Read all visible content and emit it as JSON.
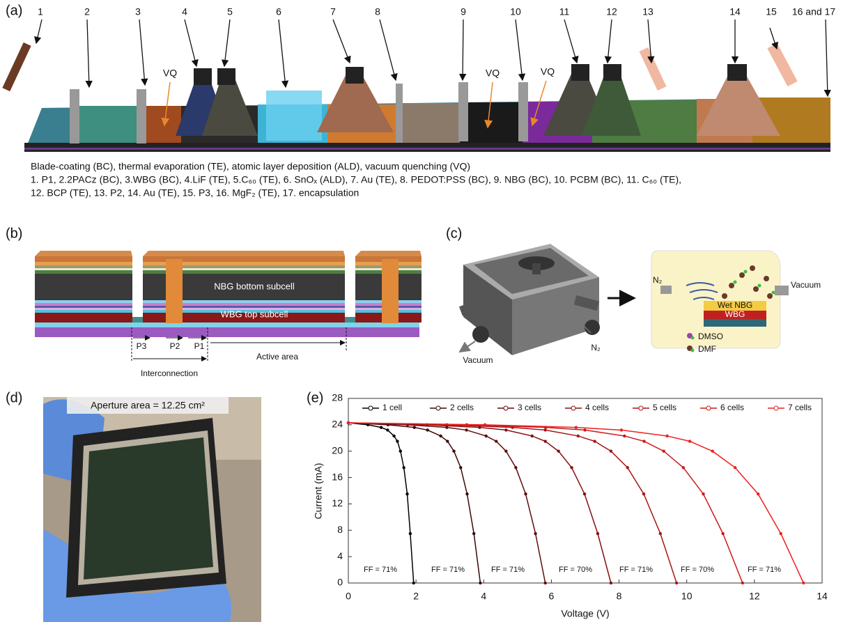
{
  "panel_a": {
    "label": "(a)",
    "steps": [
      "1",
      "2",
      "3",
      "4",
      "5",
      "6",
      "7",
      "8",
      "9",
      "10",
      "11",
      "12",
      "13",
      "14",
      "15",
      "16 and 17"
    ],
    "vq": [
      "VQ",
      "VQ",
      "VQ"
    ],
    "caption": [
      "Blade-coating (BC), thermal evaporation (TE), atomic layer deposition (ALD), vacuum quenching (VQ)",
      "1. P1, 2.2PACz (BC), 3.WBG (BC), 4.LiF (TE), 5.C₆₀ (TE), 6. SnOₓ (ALD), 7. Au (TE), 8. PEDOT:PSS (BC), 9. NBG (BC), 10. PCBM (BC), 11. C₆₀ (TE),",
      "12. BCP (TE), 13. P2, 14. Au (TE), 15. P3, 16. MgF₂ (TE), 17. encapsulation"
    ]
  },
  "panel_b": {
    "label": "(b)",
    "layers": [
      "NBG bottom subcell",
      "WBG top subcell"
    ],
    "scribes": [
      "P3",
      "P2",
      "P1"
    ],
    "regions": [
      "Active area",
      "Interconnection"
    ]
  },
  "panel_c": {
    "label": "(c)",
    "device": [
      "Vacuum",
      "N₂"
    ],
    "chamber": [
      "N₂",
      "Vacuum",
      "Wet NBG",
      "WBG"
    ],
    "legend": [
      "DMSO",
      "DMF"
    ]
  },
  "panel_d": {
    "label": "(d)",
    "caption": "Aperture area = 12.25 cm²"
  },
  "panel_e": {
    "label": "(e)"
  },
  "chart_data": {
    "type": "line",
    "xlabel": "Voltage (V)",
    "ylabel": "Current (mA)",
    "xlim": [
      0,
      14
    ],
    "ylim": [
      0,
      28
    ],
    "xticks": [
      0,
      2,
      4,
      6,
      8,
      10,
      12,
      14
    ],
    "yticks": [
      0,
      4,
      8,
      12,
      16,
      20,
      24,
      28
    ],
    "legend": "top",
    "series": [
      {
        "name": "1 cell",
        "color": "#000000",
        "x": [
          0,
          0.58,
          0.97,
          1.16,
          1.35,
          1.45,
          1.54,
          1.64,
          1.74,
          1.83,
          1.93
        ],
        "values": [
          24.3,
          24.0,
          23.6,
          23.2,
          22.3,
          21.5,
          20.0,
          17.5,
          13.5,
          7.5,
          0
        ]
      },
      {
        "name": "2 cells",
        "color": "#3a0808",
        "x": [
          0,
          1.17,
          1.95,
          2.34,
          2.73,
          2.93,
          3.12,
          3.32,
          3.51,
          3.71,
          3.9
        ],
        "values": [
          24.3,
          24.0,
          23.6,
          23.2,
          22.3,
          21.5,
          20.0,
          17.5,
          13.5,
          7.5,
          0
        ]
      },
      {
        "name": "3 cells",
        "color": "#5e0c0c",
        "x": [
          0,
          1.75,
          2.91,
          3.49,
          4.07,
          4.37,
          4.66,
          4.95,
          5.24,
          5.53,
          5.82
        ],
        "values": [
          24.3,
          24.0,
          23.6,
          23.2,
          22.3,
          21.5,
          20.0,
          17.5,
          13.5,
          7.5,
          0
        ]
      },
      {
        "name": "4 cells",
        "color": "#851010",
        "x": [
          0,
          2.33,
          3.88,
          4.66,
          5.43,
          5.82,
          6.21,
          6.6,
          6.98,
          7.37,
          7.76
        ],
        "values": [
          24.3,
          24.0,
          23.6,
          23.2,
          22.3,
          21.5,
          20.0,
          17.5,
          13.5,
          7.5,
          0
        ]
      },
      {
        "name": "5 cells",
        "color": "#a81414",
        "x": [
          0,
          2.91,
          4.85,
          5.82,
          6.79,
          7.28,
          7.76,
          8.25,
          8.73,
          9.22,
          9.7
        ],
        "values": [
          24.3,
          24.0,
          23.6,
          23.2,
          22.3,
          21.5,
          20.0,
          17.5,
          13.5,
          7.5,
          0
        ]
      },
      {
        "name": "6 cells",
        "color": "#cc1818",
        "x": [
          0,
          3.5,
          5.83,
          6.99,
          8.16,
          8.74,
          9.32,
          9.9,
          10.49,
          11.07,
          11.65
        ],
        "values": [
          24.3,
          24.0,
          23.6,
          23.2,
          22.3,
          21.5,
          20.0,
          17.5,
          13.5,
          7.5,
          0
        ]
      },
      {
        "name": "7 cells",
        "color": "#ee2020",
        "x": [
          0,
          4.04,
          6.73,
          8.07,
          9.42,
          10.09,
          10.76,
          11.43,
          12.11,
          12.78,
          13.45
        ],
        "values": [
          24.3,
          24.0,
          23.6,
          23.2,
          22.3,
          21.5,
          20.0,
          17.5,
          13.5,
          7.5,
          0
        ]
      }
    ],
    "annotations": [
      "FF = 71%",
      "FF = 71%",
      "FF = 71%",
      "FF = 70%",
      "FF = 71%",
      "FF = 70%",
      "FF = 71%"
    ]
  }
}
